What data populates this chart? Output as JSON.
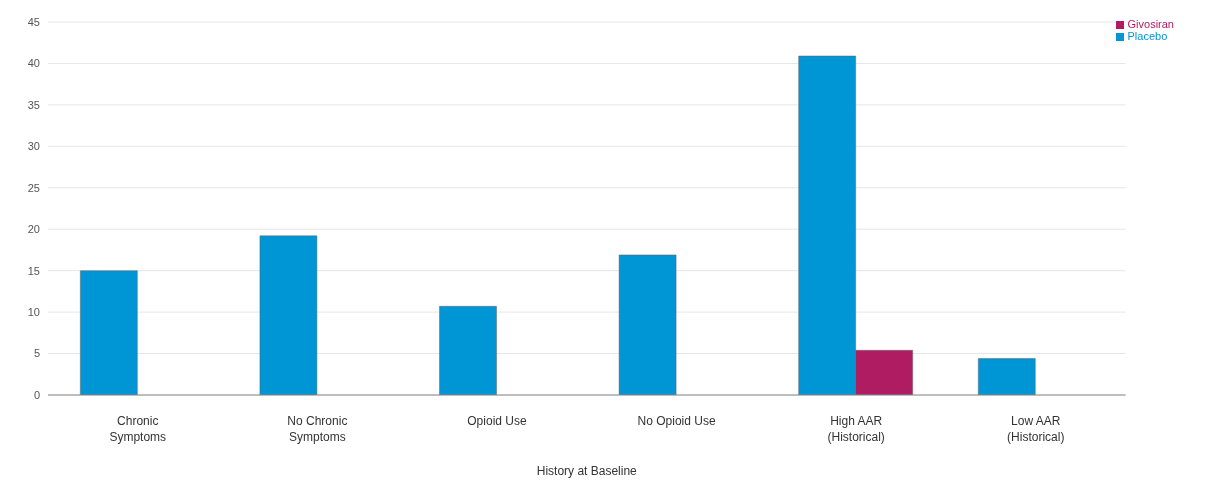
{
  "chart_data": {
    "type": "bar",
    "xlabel": "History at Baseline",
    "categories": [
      "Chronic\nSymptoms",
      "No Chronic\nSymptoms",
      "Opioid Use",
      "No Opioid Use",
      "High AAR\n(Historical)",
      "Low AAR\n(Historical)"
    ],
    "series": [
      {
        "name": "Placebo",
        "color": "#0095d5",
        "values": [
          15,
          19.2,
          10.7,
          16.9,
          40.9,
          4.4
        ]
      },
      {
        "name": "Givosiran",
        "color": "#b01c61",
        "values": [
          null,
          null,
          null,
          null,
          5.4,
          null
        ]
      }
    ],
    "ylim": [
      0,
      45
    ],
    "yticks": [
      0,
      5,
      10,
      15,
      20,
      25,
      30,
      35,
      40,
      45
    ],
    "grid": "y",
    "legend": "top right"
  }
}
